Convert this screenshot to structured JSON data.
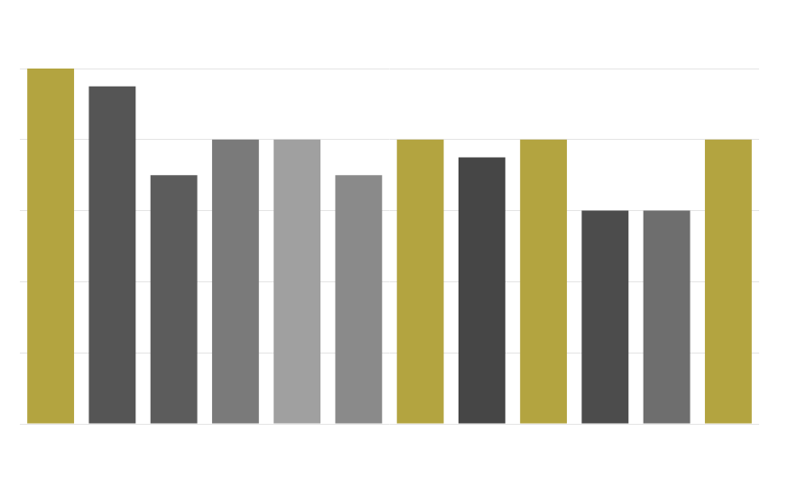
{
  "chart_data": {
    "type": "bar",
    "categories": [
      null,
      null,
      null,
      null,
      null,
      null,
      null,
      null,
      null,
      null,
      null,
      null
    ],
    "values": [
      5,
      4.75,
      3.5,
      4,
      4,
      3.5,
      4,
      3.75,
      4,
      3,
      3,
      4
    ],
    "colors": [
      "#b3a440",
      "#555555",
      "#5c5c5c",
      "#7a7a7a",
      "#a0a0a0",
      "#8a8a8a",
      "#b3a440",
      "#464646",
      "#b3a440",
      "#4c4c4c",
      "#6e6e6e",
      "#b3a440"
    ],
    "ylim": [
      0,
      5
    ],
    "yticks": [
      0,
      1,
      2,
      3,
      4,
      5
    ],
    "grid": true,
    "tick_labels": false
  }
}
